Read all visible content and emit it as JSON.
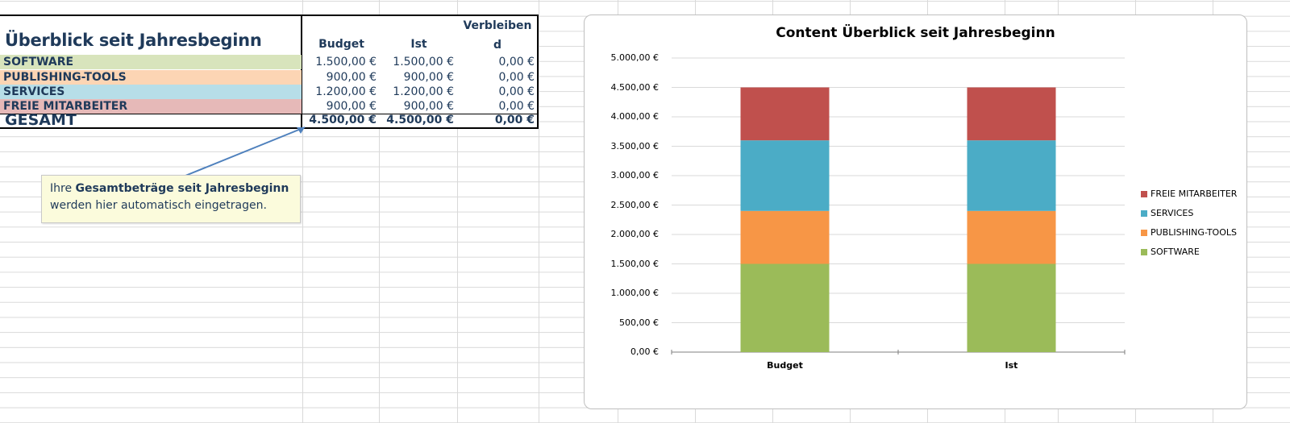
{
  "table": {
    "title": "Überblick seit Jahresbeginn",
    "col_budget": "Budget",
    "col_ist": "Ist",
    "col_verbleibend": "Verbleiben d",
    "rows": [
      {
        "label": "SOFTWARE",
        "budget": "1.500,00 €",
        "ist": "1.500,00 €",
        "verbleibend": "0,00 €",
        "color": "#d8e4bc"
      },
      {
        "label": "PUBLISHING-TOOLS",
        "budget": "900,00 €",
        "ist": "900,00 €",
        "verbleibend": "0,00 €",
        "color": "#fcd5b4"
      },
      {
        "label": "SERVICES",
        "budget": "1.200,00 €",
        "ist": "1.200,00 €",
        "verbleibend": "0,00 €",
        "color": "#b7dee8"
      },
      {
        "label": "FREIE MITARBEITER",
        "budget": "900,00 €",
        "ist": "900,00 €",
        "verbleibend": "0,00 €",
        "color": "#e6b9b8"
      }
    ],
    "total": {
      "label": "GESAMT",
      "budget": "4.500,00 €",
      "ist": "4.500,00 €",
      "verbleibend": "0,00 €"
    }
  },
  "callout": {
    "prefix": "Ihre ",
    "bold": "Gesamtbeträge seit Jahresbeginn",
    "line2": "werden hier automatisch eingetragen."
  },
  "chart_data": {
    "type": "bar",
    "stacked": true,
    "title": "Content Überblick seit Jahresbeginn",
    "categories": [
      "Budget",
      "Ist"
    ],
    "series": [
      {
        "name": "SOFTWARE",
        "values": [
          1500,
          1500
        ],
        "color": "#9bbb59"
      },
      {
        "name": "PUBLISHING-TOOLS",
        "values": [
          900,
          900
        ],
        "color": "#f79646"
      },
      {
        "name": "SERVICES",
        "values": [
          1200,
          1200
        ],
        "color": "#4bacc6"
      },
      {
        "name": "FREIE MITARBEITER",
        "values": [
          900,
          900
        ],
        "color": "#c0504d"
      }
    ],
    "ylim": [
      0,
      5000
    ],
    "yticks": [
      "0,00 €",
      "500,00 €",
      "1.000,00 €",
      "1.500,00 €",
      "2.000,00 €",
      "2.500,00 €",
      "3.000,00 €",
      "3.500,00 €",
      "4.000,00 €",
      "4.500,00 €",
      "5.000,00 €"
    ],
    "legend_position": "right",
    "grid": true
  }
}
